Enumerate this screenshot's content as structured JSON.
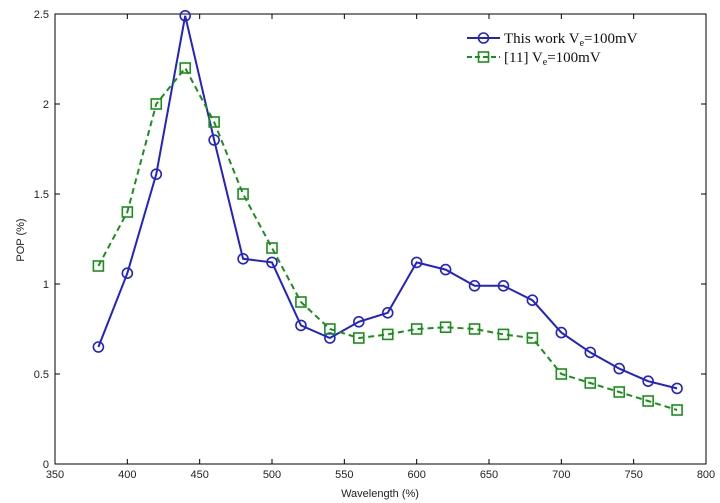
{
  "chart_data": {
    "type": "line",
    "xlabel": "Wavelength (%)",
    "ylabel": "POP (%)",
    "xlim": [
      350,
      800
    ],
    "ylim": [
      0,
      2.5
    ],
    "xticks": [
      350,
      400,
      450,
      500,
      550,
      600,
      650,
      700,
      750,
      800
    ],
    "yticks": [
      0,
      0.5,
      1,
      1.5,
      2,
      2.5
    ],
    "xtick_labels": [
      "350",
      "400",
      "450",
      "500",
      "550",
      "600",
      "650",
      "700",
      "750",
      "800"
    ],
    "ytick_labels": [
      "0",
      "0.5",
      "1",
      "1.5",
      "2",
      "2.5"
    ],
    "x": [
      380,
      400,
      420,
      440,
      460,
      480,
      500,
      520,
      540,
      560,
      580,
      600,
      620,
      640,
      660,
      680,
      700,
      720,
      740,
      760,
      780
    ],
    "grid": false,
    "legend_position": "top-right",
    "series": [
      {
        "legend_main": "This work V",
        "legend_sub": "e",
        "legend_tail": "=100mV",
        "color": "#2222cc",
        "marker": "circle",
        "line_style": "solid",
        "values": [
          0.65,
          1.06,
          1.61,
          2.49,
          1.8,
          1.14,
          1.12,
          0.77,
          0.7,
          0.79,
          0.84,
          1.12,
          1.08,
          0.99,
          0.99,
          0.91,
          0.73,
          0.62,
          0.53,
          0.46,
          0.42
        ]
      },
      {
        "legend_main": "[11] V",
        "legend_sub": "e",
        "legend_tail": "=100mV",
        "color": "#1a8f1a",
        "marker": "square",
        "line_style": "dashed",
        "values": [
          1.1,
          1.4,
          2.0,
          2.2,
          1.9,
          1.5,
          1.2,
          0.9,
          0.75,
          0.7,
          0.72,
          0.75,
          0.76,
          0.75,
          0.72,
          0.7,
          0.5,
          0.45,
          0.4,
          0.35,
          0.3
        ]
      }
    ]
  }
}
